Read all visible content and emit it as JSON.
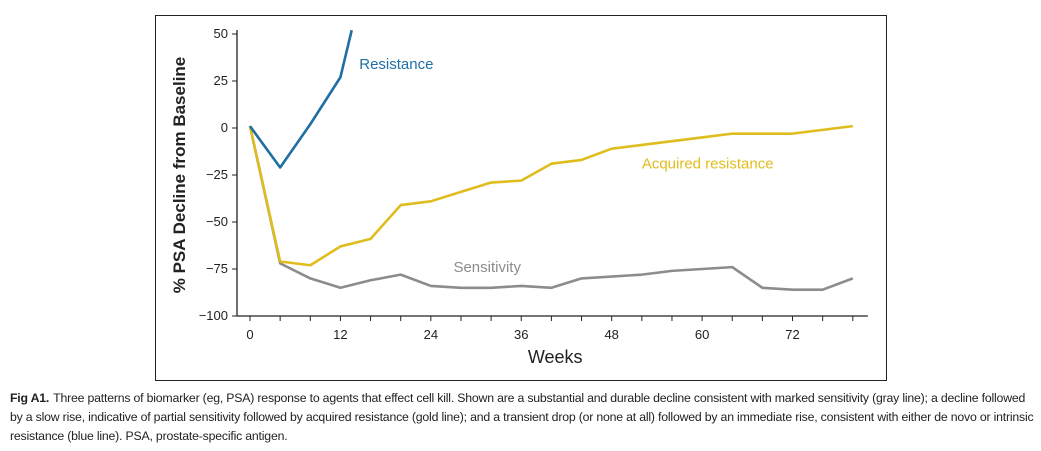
{
  "chart_data": {
    "type": "line",
    "xlabel": "Weeks",
    "ylabel": "% PSA Decline from Baseline",
    "xlim": [
      0,
      82
    ],
    "ylim": [
      -100,
      50
    ],
    "xticks": [
      0,
      12,
      24,
      36,
      48,
      60,
      72
    ],
    "yticks": [
      50,
      25,
      0,
      -25,
      -50,
      -75,
      -100
    ],
    "yticklabels": [
      "50",
      "25",
      "0",
      "−25",
      "−50",
      "−75",
      "−100"
    ],
    "grid": false,
    "series": [
      {
        "name": "Resistance",
        "color": "#1f6fa3",
        "x": [
          0,
          4,
          8,
          12,
          13.5
        ],
        "y": [
          1,
          -21,
          2,
          27,
          52
        ]
      },
      {
        "name": "Acquired resistance",
        "color": "#e0bd1e",
        "x": [
          0,
          4,
          8,
          12,
          16,
          20,
          24,
          28,
          32,
          36,
          40,
          44,
          48,
          52,
          56,
          60,
          64,
          68,
          72,
          76,
          80
        ],
        "y": [
          1,
          -71,
          -73,
          -63,
          -59,
          -41,
          -39,
          -34,
          -29,
          -28,
          -19,
          -17,
          -11,
          -9,
          -7,
          -5,
          -3,
          -3,
          -3,
          -1,
          1
        ]
      },
      {
        "name": "Sensitivity",
        "color": "#8c8c8c",
        "x": [
          0,
          4,
          8,
          12,
          16,
          20,
          24,
          28,
          32,
          36,
          40,
          44,
          48,
          52,
          56,
          60,
          64,
          68,
          72,
          76,
          80
        ],
        "y": [
          1,
          -72,
          -80,
          -85,
          -81,
          -78,
          -84,
          -85,
          -85,
          -84,
          -85,
          -80,
          -79,
          -78,
          -76,
          -75,
          -74,
          -85,
          -86,
          -86,
          -80
        ]
      }
    ],
    "annotations": [
      {
        "text": "Resistance",
        "x": 14.5,
        "y": 34,
        "color": "#1f6fa3"
      },
      {
        "text": "Acquired resistance",
        "x": 52,
        "y": -19,
        "color": "#e0bd1e"
      },
      {
        "text": "Sensitivity",
        "x": 27,
        "y": -74,
        "color": "#8c8c8c"
      }
    ]
  },
  "caption": {
    "label": "Fig A1.",
    "text": "Three patterns of biomarker (eg, PSA) response to agents that effect cell kill. Shown are a substantial and durable decline consistent with marked sensitivity (gray line); a decline followed by a slow rise, indicative of partial sensitivity followed by acquired resistance (gold line); and a transient drop (or none at all) followed by an immediate rise, consistent with either de novo or intrinsic resistance (blue line). PSA, prostate-specific antigen."
  }
}
